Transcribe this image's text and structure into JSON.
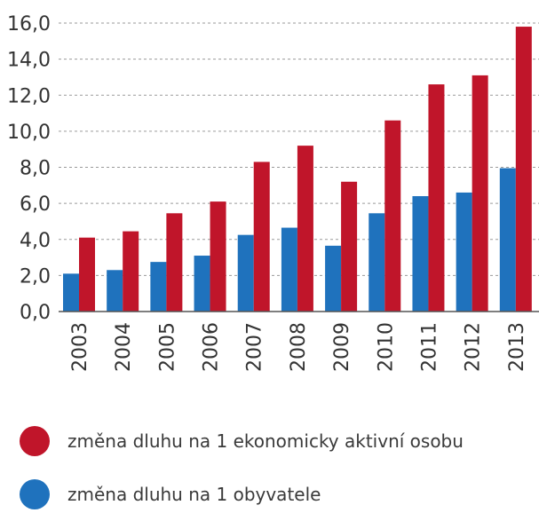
{
  "chart_data": {
    "type": "bar",
    "categories": [
      "2003",
      "2004",
      "2005",
      "2006",
      "2007",
      "2008",
      "2009",
      "2010",
      "2011",
      "2012",
      "2013"
    ],
    "series": [
      {
        "name": "změna dluhu na 1 obyvatele",
        "color": "#1f72bd",
        "values": [
          2.1,
          2.3,
          2.75,
          3.1,
          4.25,
          4.65,
          3.65,
          5.45,
          6.4,
          6.6,
          7.95
        ]
      },
      {
        "name": "změna dluhu na 1 ekonomicky aktivní osobu",
        "color": "#c0152a",
        "values": [
          4.1,
          4.45,
          5.45,
          6.1,
          8.3,
          9.2,
          7.2,
          10.6,
          12.6,
          13.1,
          15.8
        ]
      }
    ],
    "y_ticks": [
      "0,0",
      "2,0",
      "4,0",
      "6,0",
      "8,0",
      "10,0",
      "12,0",
      "14,0",
      "16,0"
    ],
    "ylim": [
      0,
      16
    ],
    "grid": true,
    "legend_position": "bottom"
  },
  "legend": {
    "items": [
      {
        "label": "změna dluhu na 1 ekonomicky aktivní osobu",
        "color": "#c0152a"
      },
      {
        "label": "změna dluhu na 1 obyvatele",
        "color": "#1f72bd"
      }
    ]
  }
}
